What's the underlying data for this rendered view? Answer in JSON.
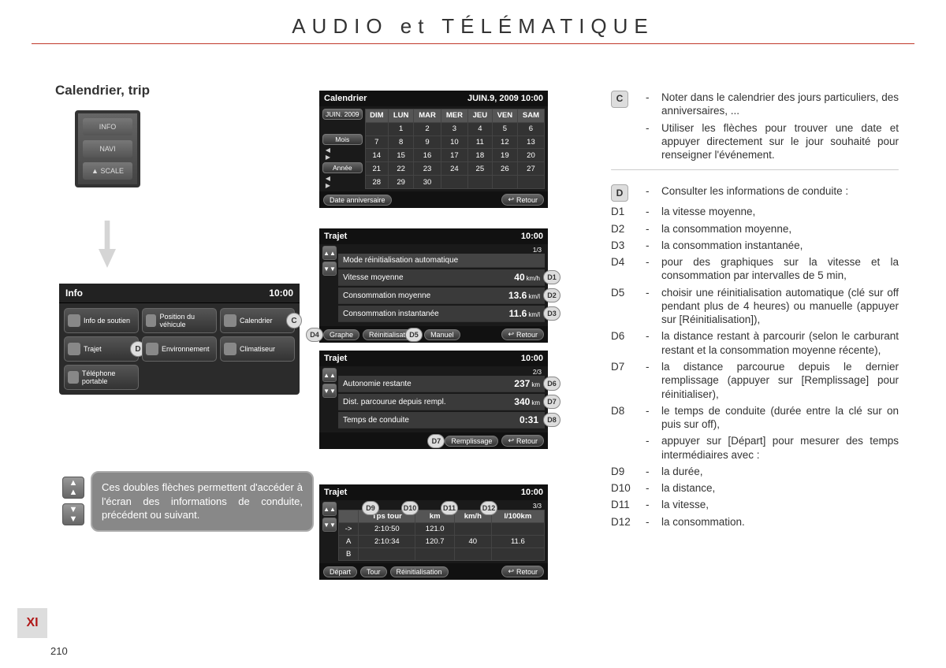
{
  "header": {
    "title": "AUDIO et TÉLÉMATIQUE",
    "subtitle": "Calendrier, trip"
  },
  "device": {
    "btns": [
      "INFO",
      "NAVI",
      "▲\nSCALE"
    ]
  },
  "info_panel": {
    "title": "Info",
    "time": "10:00",
    "items": [
      {
        "label": "Info de soutien"
      },
      {
        "label": "Position du véhicule"
      },
      {
        "label": "Calendrier",
        "badge": "C"
      },
      {
        "label": "Trajet",
        "badge": "D"
      },
      {
        "label": "Environnement"
      },
      {
        "label": "Climatiseur"
      },
      {
        "label": "Téléphone portable"
      }
    ]
  },
  "tip": {
    "text": "Ces doubles flèches permettent d'accéder à l'écran des informations de conduite, précédent ou suivant."
  },
  "calendar": {
    "title": "Calendrier",
    "datetime": "JUIN.9, 2009  10:00",
    "month_box": "JUIN. 2009",
    "mois": "Mois",
    "annee": "Année",
    "days": [
      "DIM",
      "LUN",
      "MAR",
      "MER",
      "JEU",
      "VEN",
      "SAM"
    ],
    "rows": [
      [
        "",
        "1",
        "2",
        "3",
        "4",
        "5",
        "6"
      ],
      [
        "7",
        "8",
        "9",
        "10",
        "11",
        "12",
        "13"
      ],
      [
        "14",
        "15",
        "16",
        "17",
        "18",
        "19",
        "20"
      ],
      [
        "21",
        "22",
        "23",
        "24",
        "25",
        "26",
        "27"
      ],
      [
        "28",
        "29",
        "30",
        "",
        "",
        "",
        ""
      ]
    ],
    "footer_left": "Date anniversaire",
    "retour": "Retour"
  },
  "trajet1": {
    "title": "Trajet",
    "time": "10:00",
    "page": "1/3",
    "mode": "Mode réinitialisation automatique",
    "rows": [
      {
        "label": "Vitesse moyenne",
        "val": "40",
        "unit": "km/h",
        "badge": "D1"
      },
      {
        "label": "Consommation moyenne",
        "val": "13.6",
        "unit": "km/l",
        "badge": "D2"
      },
      {
        "label": "Consommation instantanée",
        "val": "11.6",
        "unit": "km/l",
        "badge": "D3"
      }
    ],
    "footer": {
      "b1": "Graphe",
      "b1_badge": "D4",
      "b2": "Réinitialisation",
      "b2_badge": "D5",
      "b3": "Manuel",
      "retour": "Retour"
    }
  },
  "trajet2": {
    "title": "Trajet",
    "time": "10:00",
    "page": "2/3",
    "rows": [
      {
        "label": "Autonomie restante",
        "val": "237",
        "unit": "km",
        "badge": "D6"
      },
      {
        "label": "Dist. parcourue depuis rempl.",
        "val": "340",
        "unit": "km",
        "badge": "D7"
      },
      {
        "label": "Temps de conduite",
        "val": "0:31",
        "unit": "",
        "badge": "D8"
      }
    ],
    "footer": {
      "b1": "Remplissage",
      "b1_badge": "D7",
      "retour": "Retour"
    }
  },
  "trajet3": {
    "title": "Trajet",
    "time": "10:00",
    "page": "3/3",
    "cols": [
      "",
      "Tps tour",
      "km",
      "km/h",
      "l/100km"
    ],
    "col_badges": [
      "",
      "D9",
      "D10",
      "D11",
      "D12"
    ],
    "rows": [
      [
        "->",
        "2:10:50",
        "121.0",
        "",
        ""
      ],
      [
        "A",
        "2:10:34",
        "120.7",
        "40",
        "11.6"
      ],
      [
        "B",
        "",
        "",
        "",
        ""
      ]
    ],
    "footer": {
      "b1": "Départ",
      "b2": "Tour",
      "b3": "Réinitialisation",
      "retour": "Retour"
    }
  },
  "right": [
    {
      "tag": "C",
      "box": true,
      "text": "Noter dans le calendrier des jours particuliers, des anniversaires, ..."
    },
    {
      "tag": "",
      "text": "Utiliser les flèches pour trouver une date et appuyer directement sur le jour souhaité pour renseigner l'événement."
    },
    {
      "divider": true
    },
    {
      "tag": "D",
      "box": true,
      "text": "Consulter les informations de conduite :"
    },
    {
      "tag": "D1",
      "text": "la vitesse moyenne,"
    },
    {
      "tag": "D2",
      "text": "la consommation moyenne,"
    },
    {
      "tag": "D3",
      "text": "la consommation instantanée,"
    },
    {
      "tag": "D4",
      "text": "pour des graphiques sur la vitesse et la consommation par intervalles de 5 min,"
    },
    {
      "tag": "D5",
      "text": "choisir une réinitialisation automatique (clé sur off pendant plus de 4 heures) ou manuelle (appuyer sur [Réinitialisation]),"
    },
    {
      "tag": "D6",
      "text": "la distance restant à parcourir (selon le carburant restant et la consommation moyenne récente),"
    },
    {
      "tag": "D7",
      "text": "la distance parcourue depuis le dernier remplissage (appuyer sur [Remplissage] pour réinitialiser),"
    },
    {
      "tag": "D8",
      "text": "le temps de conduite (durée entre la clé sur on puis sur off),"
    },
    {
      "tag": "",
      "text": "appuyer sur [Départ] pour mesurer des temps intermédiaires avec :"
    },
    {
      "tag": "D9",
      "text": "la durée,"
    },
    {
      "tag": "D10",
      "text": "la distance,"
    },
    {
      "tag": "D11",
      "text": "la vitesse,"
    },
    {
      "tag": "D12",
      "text": "la consommation."
    }
  ],
  "section": "XI",
  "page_number": "210",
  "retour": "Retour"
}
